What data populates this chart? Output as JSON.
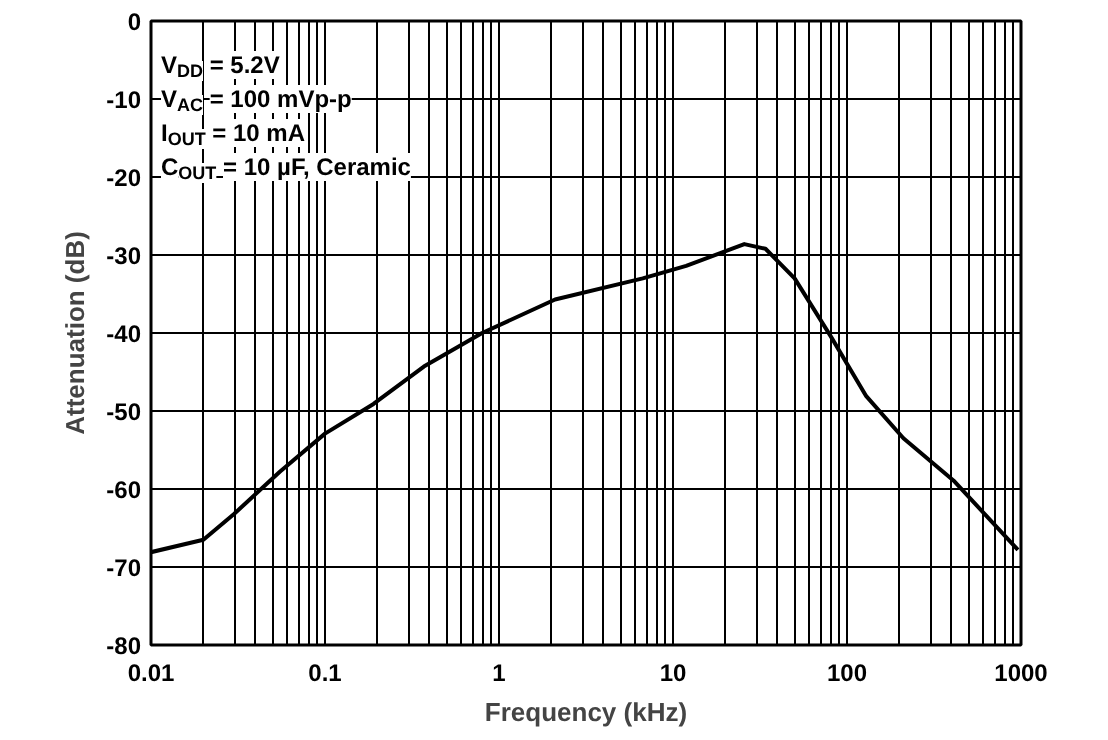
{
  "chart_data": {
    "type": "line",
    "xlabel": "Frequency (kHz)",
    "ylabel": "Attenuation (dB)",
    "log": "x",
    "grid": true,
    "marker": "none",
    "line_style": "solid",
    "xlim": [
      0.01,
      1000
    ],
    "xticks": [
      0.01,
      0.1,
      1,
      10,
      100,
      1000
    ],
    "ylim": [
      -80,
      0
    ],
    "yticks": [
      -80,
      -70,
      -60,
      -50,
      -40,
      -30,
      -20,
      -10,
      0
    ],
    "annotations": [
      "V$_{DD}$ = 5.2V",
      "V$_{AC}$ = 100 mVp-p",
      "I$_{OUT}$ = 10 mA",
      "C$_{OUT}$ = 10 µF, Ceramic"
    ],
    "series": [
      {
        "color": "#000000",
        "x": [
          0.01,
          0.02,
          0.03,
          0.055,
          0.1,
          0.19,
          0.37,
          0.8,
          2.1,
          6.7,
          11.9,
          25.7,
          34,
          50,
          81,
          129,
          211,
          409,
          960
        ],
        "values": [
          -68.1,
          -66.5,
          -63.2,
          -57.8,
          -52.9,
          -49.1,
          -44.3,
          -40,
          -35.7,
          -33,
          -31.4,
          -28.6,
          -29.2,
          -33,
          -40.5,
          -48.1,
          -53.5,
          -58.9,
          -67.8
        ]
      }
    ]
  }
}
